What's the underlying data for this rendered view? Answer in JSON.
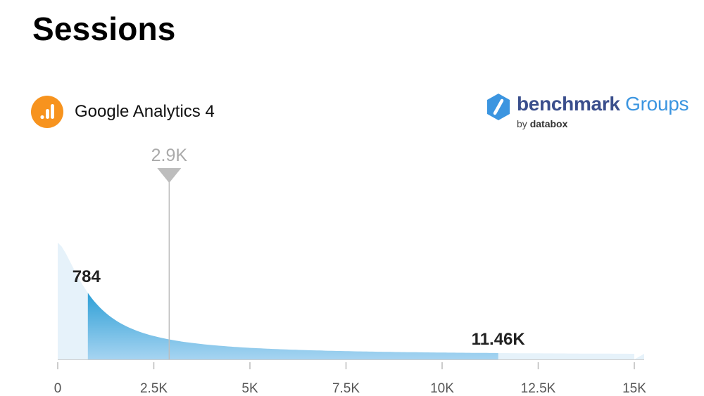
{
  "header": {
    "title": "Sessions"
  },
  "source": {
    "label": "Google Analytics 4",
    "icon": "google-analytics-icon",
    "icon_color": "#f7931e"
  },
  "brand": {
    "word1": "benchmark",
    "word2": " Groups",
    "by": "by",
    "company": "databox",
    "icon": "benchmark-hexagon-icon",
    "color": "#3a4e8c",
    "accent": "#3b95e0"
  },
  "chart_data": {
    "type": "area",
    "title": "Sessions",
    "xlabel": "",
    "ylabel": "",
    "xlim": [
      0,
      15000
    ],
    "x_ticks": [
      {
        "value": 0,
        "label": "0"
      },
      {
        "value": 2500,
        "label": "2.5K"
      },
      {
        "value": 5000,
        "label": "5K"
      },
      {
        "value": 7500,
        "label": "7.5K"
      },
      {
        "value": 10000,
        "label": "10K"
      },
      {
        "value": 12500,
        "label": "12.5K"
      },
      {
        "value": 15000,
        "label": "15K"
      }
    ],
    "range": {
      "low": 784,
      "low_label": "784",
      "high": 11460,
      "high_label": "11.46K"
    },
    "marker": {
      "value": 2900,
      "label": "2.9K"
    },
    "grid": false,
    "colors": {
      "outer": "#e6f2fa",
      "band_top": "#2e9fd6",
      "band_bottom": "#a6d4f1",
      "marker": "#bdbdbd",
      "marker_label": "#aaaaaa"
    }
  }
}
